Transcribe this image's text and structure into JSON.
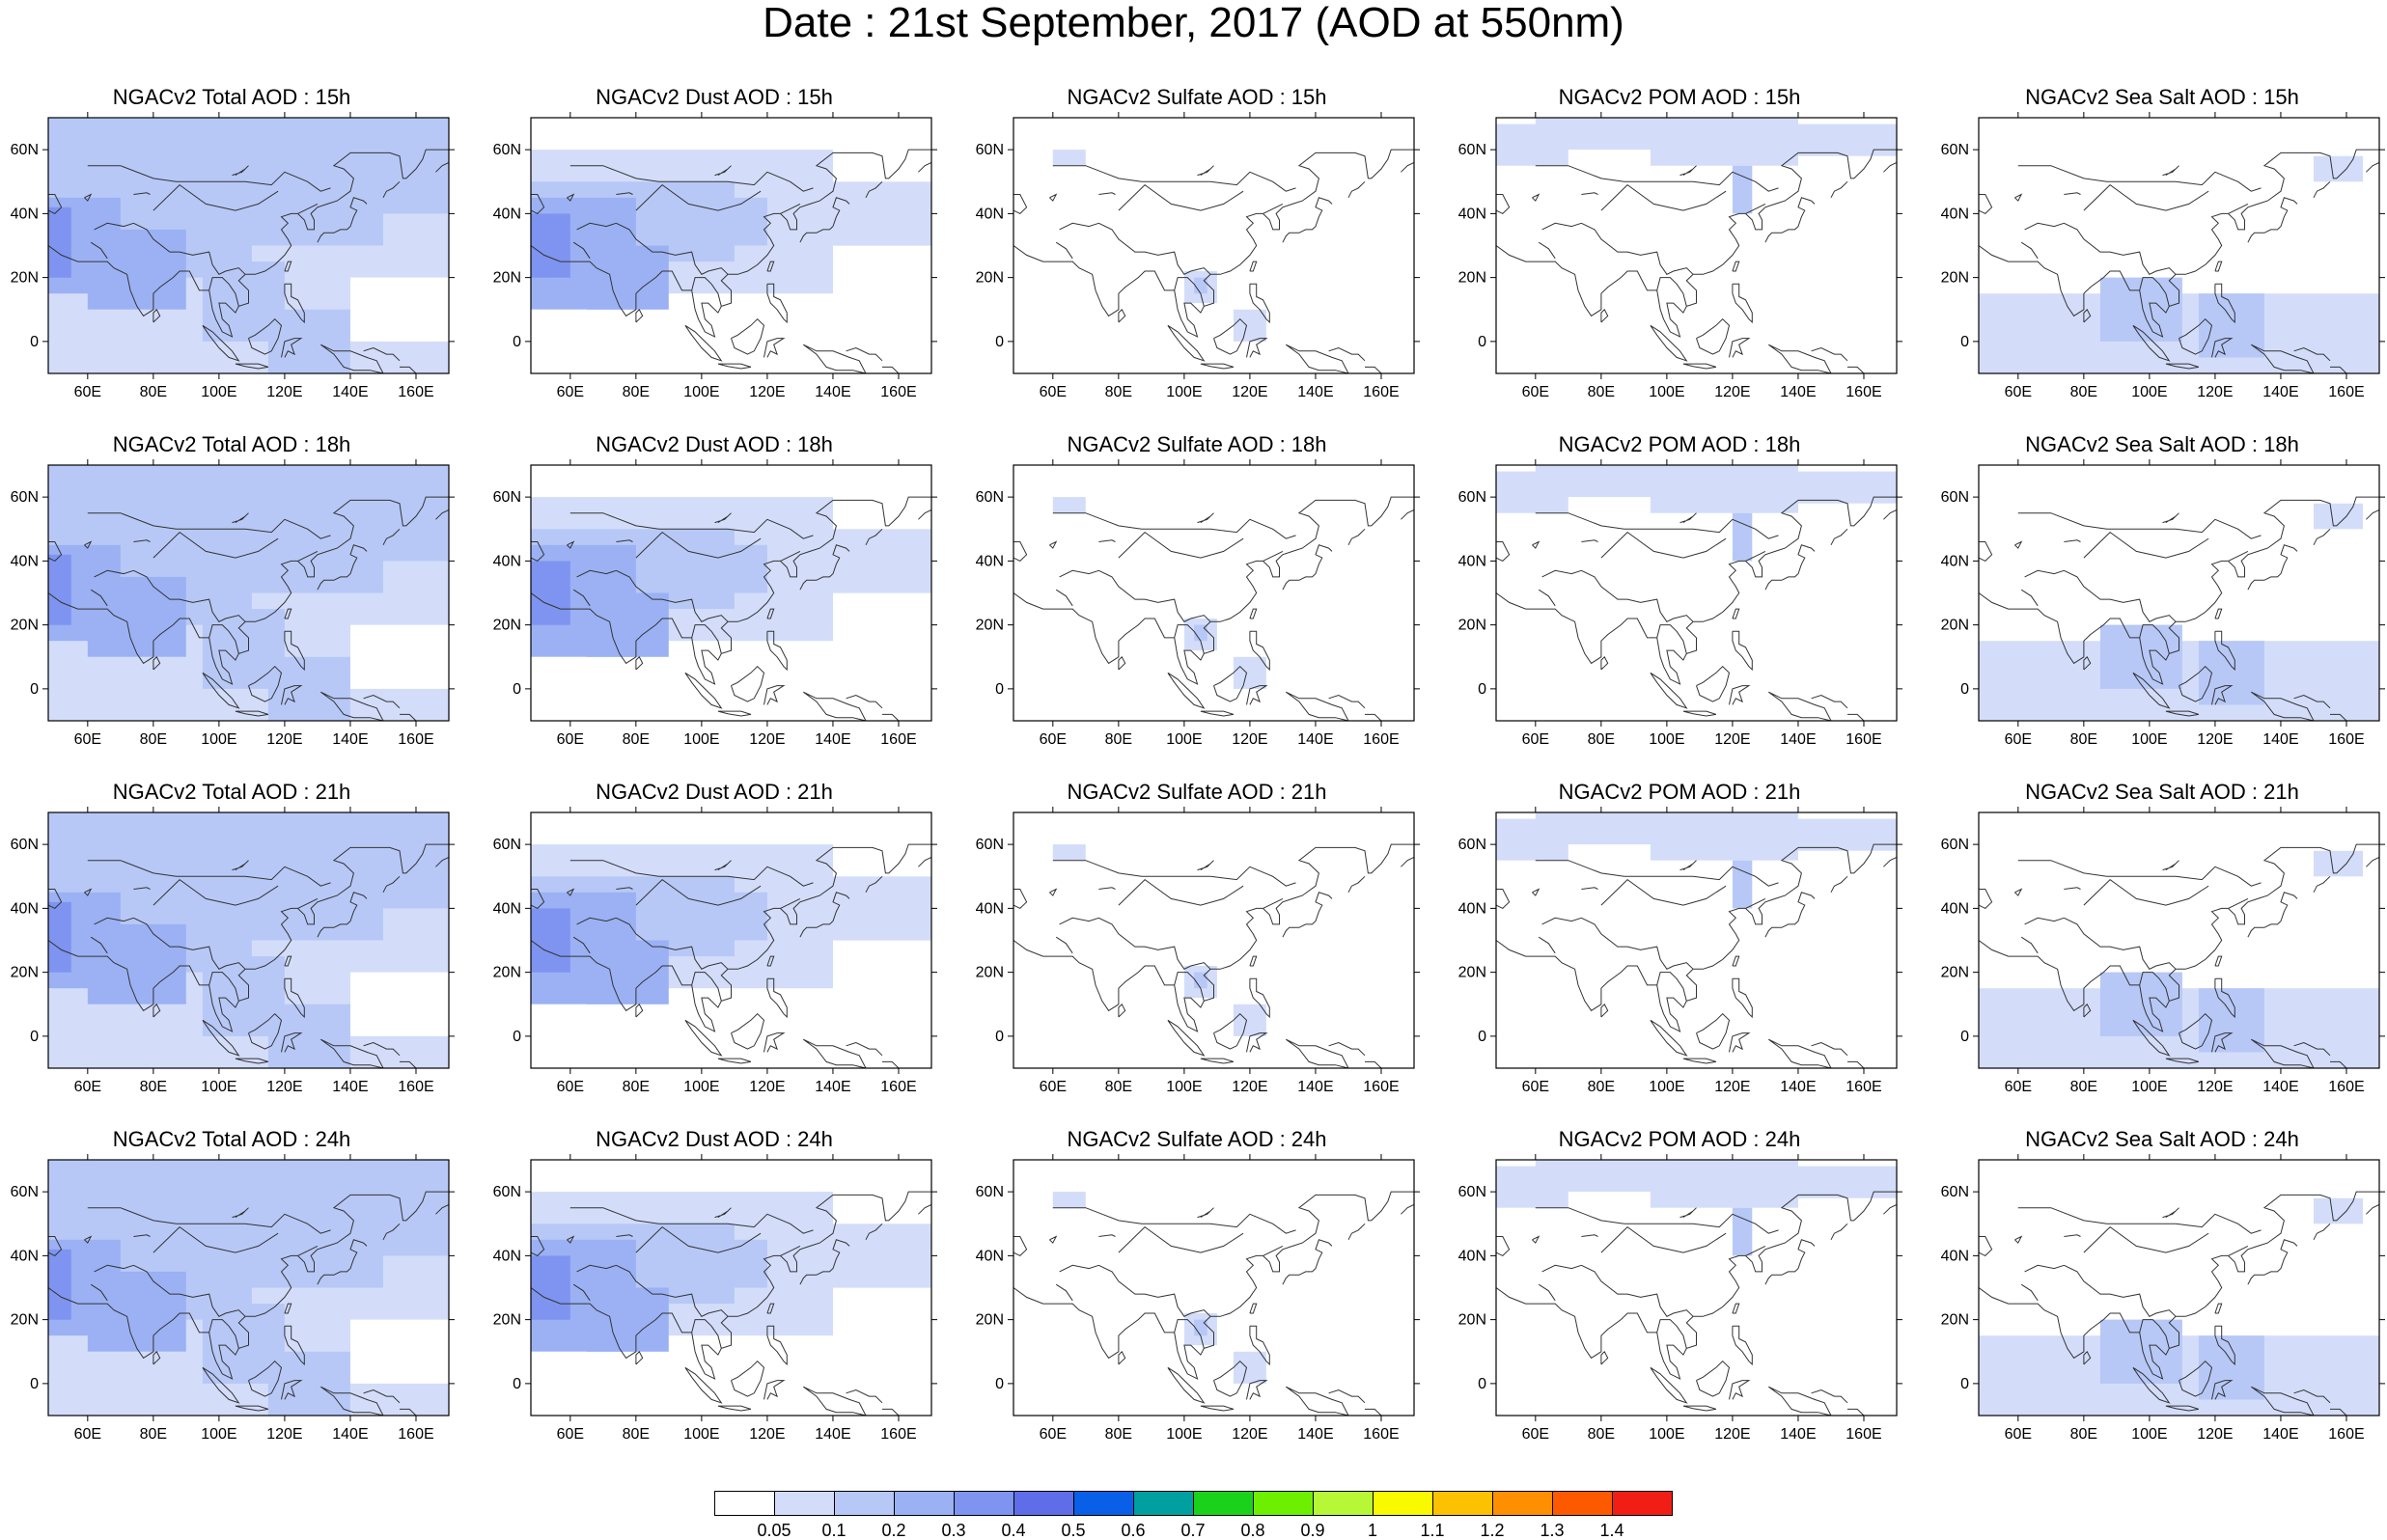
{
  "figure_title": "Date : 21st September, 2017 (AOD at 550nm)",
  "axes": {
    "x_ticks": [
      "60E",
      "80E",
      "100E",
      "120E",
      "140E",
      "160E"
    ],
    "y_ticks": [
      "60N",
      "40N",
      "20N",
      "0"
    ]
  },
  "panel_titles": [
    [
      "NGACv2 Total AOD : 15h",
      "NGACv2 Dust AOD : 15h",
      "NGACv2 Sulfate AOD : 15h",
      "NGACv2 POM AOD : 15h",
      "NGACv2 Sea Salt AOD : 15h"
    ],
    [
      "NGACv2 Total AOD : 18h",
      "NGACv2 Dust AOD : 18h",
      "NGACv2 Sulfate AOD : 18h",
      "NGACv2 POM AOD : 18h",
      "NGACv2 Sea Salt AOD : 18h"
    ],
    [
      "NGACv2 Total AOD : 21h",
      "NGACv2 Dust AOD : 21h",
      "NGACv2 Sulfate AOD : 21h",
      "NGACv2 POM AOD : 21h",
      "NGACv2 Sea Salt AOD : 21h"
    ],
    [
      "NGACv2 Total AOD : 24h",
      "NGACv2 Dust AOD : 24h",
      "NGACv2 Sulfate AOD : 24h",
      "NGACv2 POM AOD : 24h",
      "NGACv2 Sea Salt  AOD : 24h"
    ]
  ],
  "colorbar": {
    "labels": [
      "0.05",
      "0.1",
      "0.2",
      "0.3",
      "0.4",
      "0.5",
      "0.6",
      "0.7",
      "0.8",
      "0.9",
      "1",
      "1.1",
      "1.2",
      "1.3",
      "1.4"
    ],
    "colors": [
      "#ffffff",
      "#d3ddfa",
      "#b7c8f7",
      "#9bb1f4",
      "#7e94f0",
      "#5f6de8",
      "#0a5fe8",
      "#00a0a0",
      "#1ad21a",
      "#6cf000",
      "#b7f735",
      "#f9f900",
      "#fcc100",
      "#fd8f00",
      "#fd5a00",
      "#f01e14"
    ]
  }
}
